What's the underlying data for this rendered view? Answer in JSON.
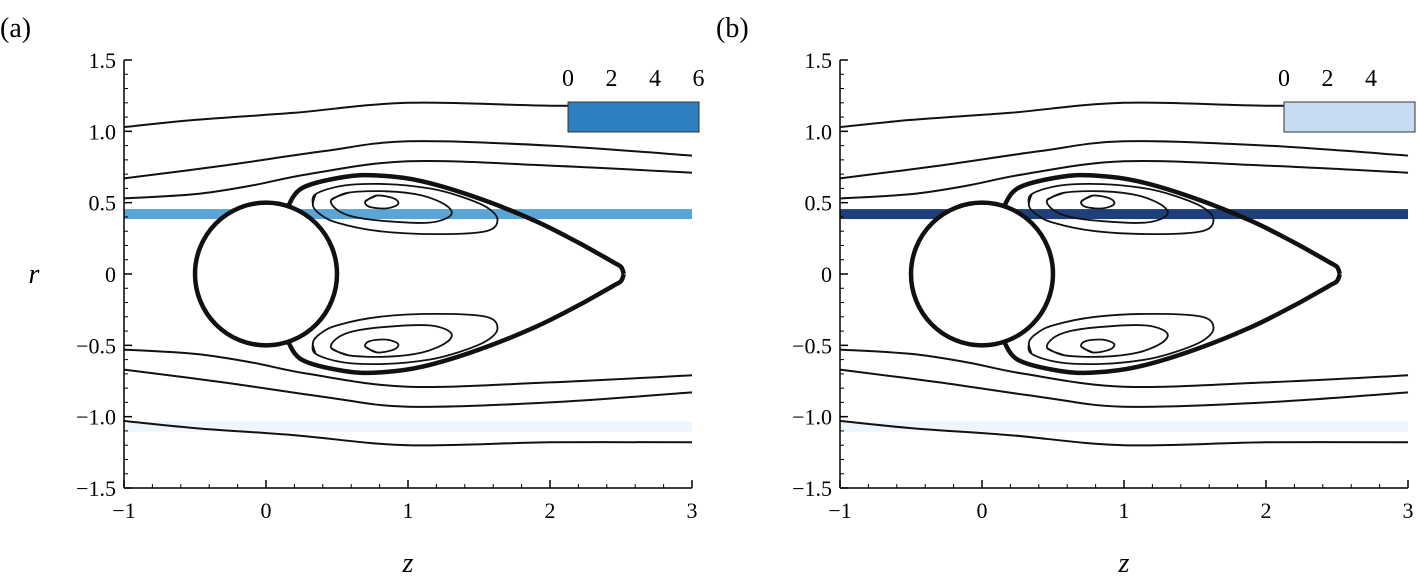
{
  "chart_data": [
    {
      "type": "contour",
      "panel_label": "(a)",
      "xlabel": "z",
      "ylabel": "r",
      "xlim": [
        -1,
        3
      ],
      "ylim": [
        -1.5,
        1.5
      ],
      "x_ticks": [
        "−1",
        "0",
        "1",
        "2",
        "3"
      ],
      "y_ticks": [
        "−1.5",
        "−1.0",
        "−0.5",
        "0",
        "0.5",
        "1.0",
        "1.5"
      ],
      "colorbar_ticks": [
        "0",
        "2",
        "4",
        "6"
      ],
      "colorbar_color": "#2e7fc0",
      "bands": [
        {
          "r": 0.42,
          "color": "#5aa5d6"
        },
        {
          "r": -1.07,
          "color": "#eef6fc"
        }
      ],
      "sphere": {
        "center": [
          0,
          0
        ],
        "radius": 0.5
      }
    },
    {
      "type": "contour",
      "panel_label": "(b)",
      "xlabel": "z",
      "ylabel": "",
      "xlim": [
        -1,
        3
      ],
      "ylim": [
        -1.5,
        1.5
      ],
      "x_ticks": [
        "−1",
        "0",
        "1",
        "2",
        "3"
      ],
      "y_ticks": [
        "−1.5",
        "−1.0",
        "−0.5",
        "0",
        "0.5",
        "1.0",
        "1.5"
      ],
      "colorbar_ticks": [
        "0",
        "2",
        "4"
      ],
      "colorbar_color": "#c6dcf1",
      "bands": [
        {
          "r": 0.42,
          "color": "#1f3f7a"
        },
        {
          "r": -1.07,
          "color": "#eef6fc"
        }
      ],
      "sphere": {
        "center": [
          0,
          0
        ],
        "radius": 0.5
      }
    }
  ]
}
